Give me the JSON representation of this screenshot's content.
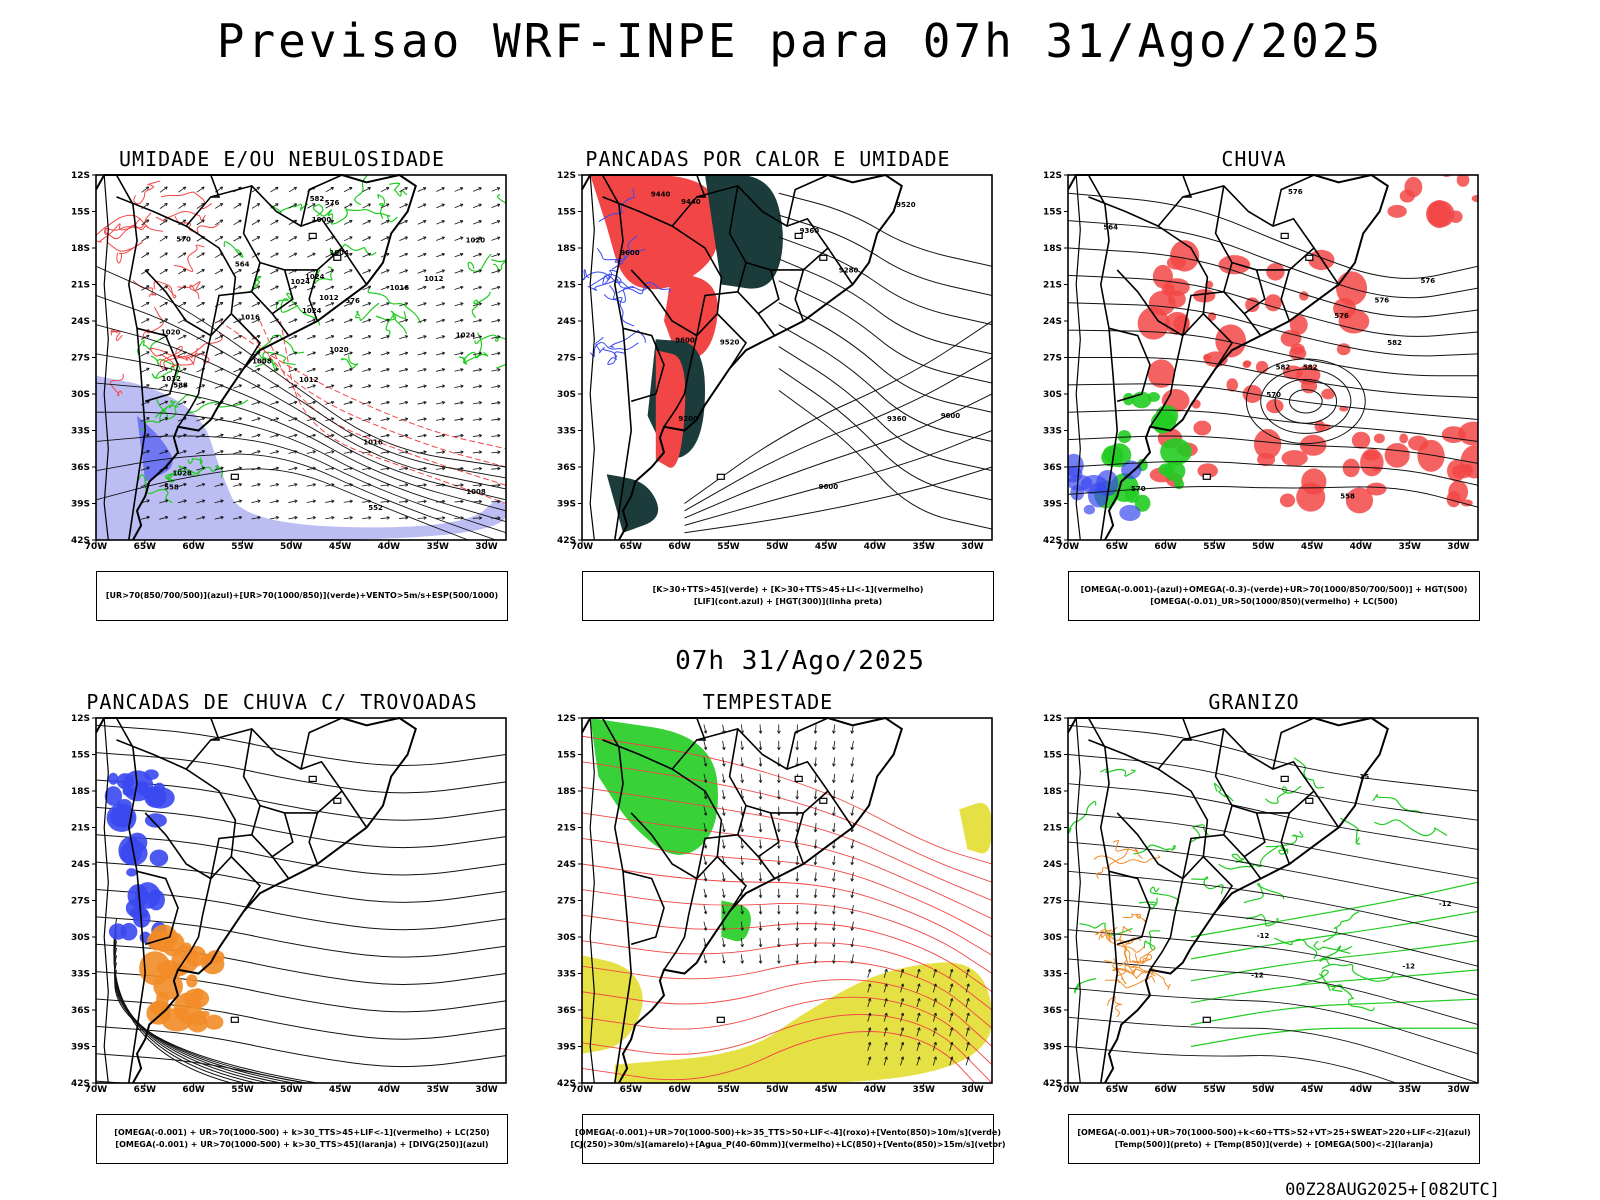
{
  "header": {
    "title": "Previsao WRF-INPE  para 07h 31/Ago/2025",
    "mid_date": "07h 31/Ago/2025",
    "footer": "00Z28AUG2025+[082UTC]"
  },
  "axes": {
    "lat_labels": [
      "12S",
      "15S",
      "18S",
      "21S",
      "24S",
      "27S",
      "30S",
      "33S",
      "36S",
      "39S",
      "42S"
    ],
    "lon_labels": [
      "70W",
      "65W",
      "60W",
      "55W",
      "50W",
      "45W",
      "40W",
      "35W",
      "30W"
    ]
  },
  "colors": {
    "green": "#22cc22",
    "red": "#f24646",
    "blue": "#3a48f0",
    "lavender": "#b4b6f2",
    "darkteal": "#1c3b3b",
    "orange": "#f28c28",
    "yellow": "#e4df3a",
    "black": "#111111"
  },
  "panels": [
    {
      "title": "UMIDADE E/OU NEBULOSIDADE",
      "legend": [
        "[UR>70(850/700/500)](azul)+[UR>70(1000/850)](verde)+VENTO>5m/s+ESP(500/1000)"
      ],
      "contour_labels": [
        "1016",
        "1012",
        "1008",
        "1012",
        "1016",
        "1020",
        "1020",
        "1024",
        "1024",
        "1024",
        "1028",
        "1032",
        "1024",
        "1020",
        "1016",
        "1012",
        "1008",
        "1004",
        "1000",
        "576",
        "570",
        "564",
        "558",
        "552",
        "582",
        "588",
        "576"
      ]
    },
    {
      "title": "PANCADAS POR CALOR E UMIDADE",
      "legend": [
        "[K>30+TTS>45](verde) + [K>30+TTS>45+LI<-1](vermelho)",
        "[LIF](cont.azul) + [HGT(300)](linha preta)"
      ],
      "contour_labels": [
        "9600",
        "9600",
        "9600",
        "9600",
        "9520",
        "9520",
        "9440",
        "9360",
        "9280",
        "9200",
        "9440",
        "9360"
      ]
    },
    {
      "title": "CHUVA",
      "legend": [
        "[OMEGA(-0.001)-(azul)+OMEGA(-0.3)-(verde)+UR>70(1000/850/700/500)] + HGT(500)",
        "[OMEGA(-0.01)_UR>50(1000/850)(vermelho) + LC(500)"
      ],
      "contour_labels": [
        "582",
        "582",
        "576",
        "570",
        "564",
        "558",
        "576",
        "576",
        "576",
        "570",
        "582"
      ]
    },
    {
      "title": "PANCADAS DE CHUVA C/ TROVOADAS",
      "legend": [
        "[OMEGA(-0.001) + UR>70(1000-500) + k>30_TTS>45+LIF<-1](vermelho) + LC(250)",
        "[OMEGA(-0.001) + UR>70(1000-500) + k>30_TTS>45](laranja) + [DIVG(250)](azul)"
      ],
      "contour_labels": []
    },
    {
      "title": "TEMPESTADE",
      "legend": [
        "[OMEGA(-0.001)+UR>70(1000-500)+k>35_TTS>50+LIF<-4](roxo)+[Vento(850)>10m/s](verde)",
        "[CJ(250)>30m/s](amarelo)+[Agua_P(40-60mm)](vermelho)+LC(850)+[Vento(850)>15m/s](vetor)"
      ],
      "contour_labels": []
    },
    {
      "title": "GRANIZO",
      "legend": [
        "[OMEGA(-0.001)+UR>70(1000-500)+k<60+TTS>52+VT>25+SWEAT>220+LIF<-2](azul)",
        "[Temp(500)](preto) + [Temp(850)](verde) + [OMEGA(500)<-2](laranja)"
      ],
      "contour_labels": [
        "-12",
        "-12",
        "-12",
        "-12",
        "-15"
      ]
    }
  ]
}
